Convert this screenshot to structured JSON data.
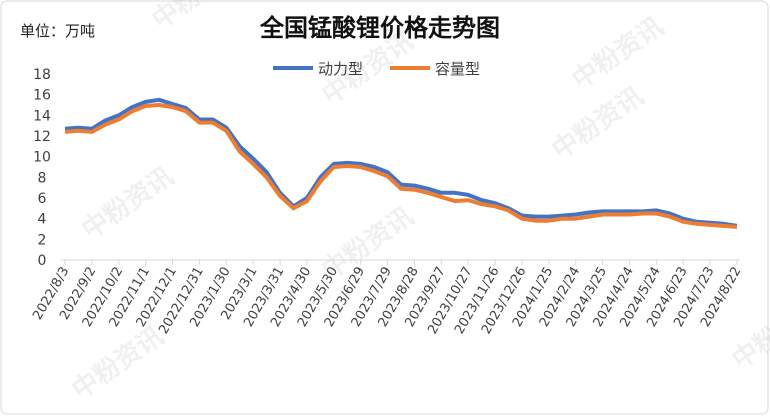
{
  "chart_data": {
    "type": "line",
    "title": "全国锰酸锂价格走势图",
    "unit_label": "单位：万吨",
    "watermark": "中粉资讯",
    "categories": [
      "2022/8/3",
      null,
      "2022/9/2",
      null,
      "2022/10/2",
      null,
      "2022/11/1",
      null,
      "2022/12/1",
      null,
      "2022/12/31",
      null,
      "2023/1/30",
      null,
      "2023/3/1",
      null,
      "2023/3/31",
      null,
      "2023/4/30",
      null,
      "2023/5/30",
      null,
      "2023/6/29",
      null,
      "2023/7/29",
      null,
      "2023/8/28",
      null,
      "2023/9/27",
      null,
      "2023/10/27",
      null,
      "2023/11/26",
      null,
      "2023/12/26",
      null,
      "2024/1/25",
      null,
      "2024/2/24",
      null,
      "2024/3/25",
      null,
      "2024/4/24",
      null,
      "2024/5/24",
      null,
      "2024/6/23",
      null,
      "2024/7/23",
      null,
      "2024/8/22"
    ],
    "series": [
      {
        "name": "动力型",
        "color": "#4472c4",
        "values": [
          12.7,
          12.8,
          12.7,
          13.5,
          14.0,
          14.8,
          15.3,
          15.5,
          15.1,
          14.7,
          13.6,
          13.6,
          12.8,
          11.0,
          9.8,
          8.5,
          6.5,
          5.2,
          6.0,
          8.0,
          9.3,
          9.4,
          9.3,
          9.0,
          8.5,
          7.3,
          7.2,
          6.9,
          6.5,
          6.5,
          6.3,
          5.8,
          5.5,
          5.0,
          4.3,
          4.2,
          4.2,
          4.3,
          4.4,
          4.6,
          4.7,
          4.7,
          4.7,
          4.7,
          4.8,
          4.5,
          4.0,
          3.7,
          3.6,
          3.5,
          3.3
        ]
      },
      {
        "name": "容量型",
        "color": "#ed7d31",
        "values": [
          12.4,
          12.5,
          12.4,
          13.1,
          13.6,
          14.4,
          14.9,
          15.0,
          14.8,
          14.4,
          13.3,
          13.3,
          12.5,
          10.5,
          9.3,
          8.0,
          6.2,
          5.0,
          5.7,
          7.6,
          9.0,
          9.1,
          9.0,
          8.6,
          8.1,
          6.9,
          6.8,
          6.5,
          6.1,
          5.7,
          5.8,
          5.4,
          5.2,
          4.8,
          4.0,
          3.8,
          3.8,
          4.0,
          4.0,
          4.2,
          4.4,
          4.4,
          4.4,
          4.5,
          4.5,
          4.2,
          3.7,
          3.5,
          3.4,
          3.3,
          3.2
        ]
      }
    ],
    "ylim": [
      0,
      18
    ],
    "yticks": [
      0,
      2,
      4,
      6,
      8,
      10,
      12,
      14,
      16,
      18
    ],
    "grid": false,
    "legend": "top"
  }
}
